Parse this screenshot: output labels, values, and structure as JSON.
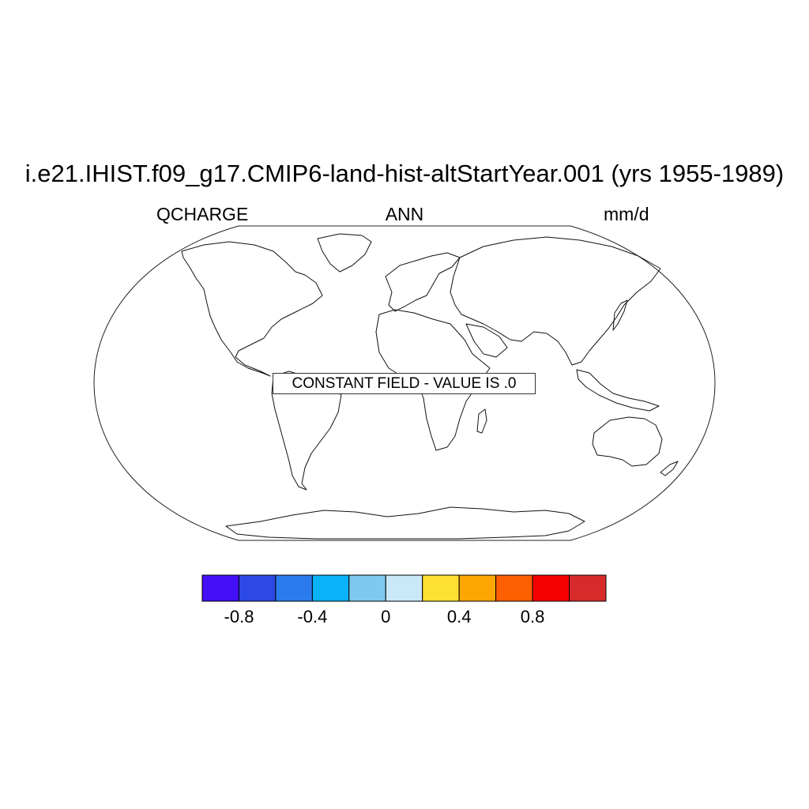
{
  "plot": {
    "title": "i.e21.IHIST.f09_g17.CMIP6-land-hist-altStartYear.001 (yrs 1955-1989)",
    "left_label": "QCHARGE",
    "center_label": "ANN",
    "right_label": "mm/d",
    "message": "CONSTANT FIELD - VALUE IS .0",
    "projection": "Robinson",
    "field_value": 0
  },
  "colorbar": {
    "colors": [
      "#4410F5",
      "#2C49E5",
      "#2C7BEE",
      "#0AB2FA",
      "#7EC9EF",
      "#C9E8F8",
      "#FEDF33",
      "#FEA600",
      "#FE5F00",
      "#F50000",
      "#D72B2B"
    ],
    "ticks": [
      {
        "label": "-0.8",
        "value": -0.8
      },
      {
        "label": "-0.4",
        "value": -0.4
      },
      {
        "label": "0",
        "value": 0
      },
      {
        "label": "0.4",
        "value": 0.4
      },
      {
        "label": "0.8",
        "value": 0.8
      }
    ]
  }
}
